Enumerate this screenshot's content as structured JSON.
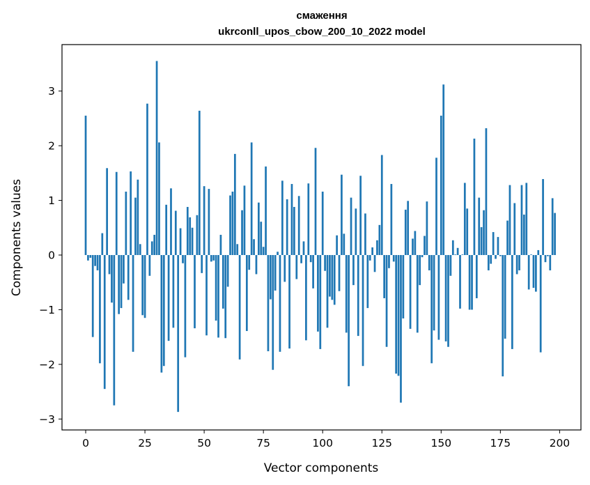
{
  "chart_data": {
    "type": "bar",
    "title_line1": "смаження",
    "title_line2": "ukrconll_upos_cbow_200_10_2022 model",
    "xlabel": "Vector components",
    "ylabel": "Components values",
    "xlim": [
      -10,
      209
    ],
    "ylim": [
      -3.2,
      3.85
    ],
    "xticks": [
      0,
      25,
      50,
      75,
      100,
      125,
      150,
      175,
      200
    ],
    "yticks": [
      -3,
      -2,
      -1,
      0,
      1,
      2,
      3
    ],
    "bar_color": "#1f77b4",
    "values": [
      2.55,
      -0.1,
      -0.05,
      -1.5,
      -0.2,
      -0.28,
      -1.98,
      0.4,
      -2.45,
      1.59,
      -0.35,
      -0.87,
      -2.75,
      1.52,
      -1.08,
      -0.97,
      -0.52,
      1.16,
      -0.82,
      1.53,
      -1.77,
      1.05,
      1.38,
      0.2,
      -1.1,
      -1.15,
      2.77,
      -0.38,
      0.25,
      0.37,
      3.55,
      2.06,
      -2.15,
      -2.03,
      0.92,
      -1.57,
      1.22,
      -1.33,
      0.81,
      -2.87,
      0.49,
      -0.15,
      -1.87,
      0.88,
      0.69,
      0.5,
      -1.34,
      0.73,
      2.64,
      -0.33,
      1.26,
      -1.47,
      1.21,
      -0.12,
      -0.1,
      -1.2,
      -1.51,
      0.37,
      -0.98,
      -1.52,
      -0.58,
      1.09,
      1.16,
      1.85,
      0.2,
      -1.91,
      0.82,
      1.27,
      -1.39,
      -0.27,
      2.06,
      0.29,
      -0.35,
      0.96,
      0.61,
      0.15,
      1.62,
      -1.76,
      -0.81,
      -2.1,
      -0.65,
      0.06,
      -1.77,
      1.36,
      -0.49,
      1.02,
      -1.71,
      1.3,
      0.88,
      -0.44,
      1.08,
      -0.15,
      0.25,
      -1.56,
      1.31,
      -0.13,
      -0.61,
      1.96,
      -1.4,
      -1.72,
      1.16,
      -0.29,
      -1.33,
      -0.76,
      -0.82,
      -0.91,
      0.36,
      -0.66,
      1.47,
      0.39,
      -1.42,
      -2.4,
      1.05,
      -0.55,
      0.85,
      -1.48,
      1.45,
      -2.03,
      0.76,
      -0.97,
      -0.1,
      0.14,
      -0.31,
      0.27,
      0.55,
      1.83,
      -0.79,
      -1.68,
      -0.24,
      1.3,
      -0.12,
      -2.17,
      -2.21,
      -2.7,
      -1.16,
      0.83,
      0.99,
      -1.35,
      0.3,
      0.44,
      -1.42,
      -0.55,
      -0.04,
      0.35,
      0.98,
      -0.28,
      -1.98,
      -1.38,
      1.78,
      -1.55,
      2.55,
      3.12,
      -1.58,
      -1.68,
      -0.38,
      0.27,
      0.01,
      0.13,
      -0.98,
      0.01,
      1.32,
      0.85,
      -1.0,
      -1.0,
      2.13,
      -0.79,
      1.05,
      0.51,
      0.82,
      2.32,
      -0.28,
      -0.16,
      0.42,
      -0.07,
      0.33,
      -0.02,
      -2.22,
      -1.53,
      0.63,
      1.28,
      -1.72,
      0.95,
      -0.35,
      -0.28,
      1.28,
      0.74,
      1.32,
      -0.63,
      0.01,
      -0.6,
      -0.67,
      0.09,
      -1.78,
      1.39,
      -0.13,
      -0.02,
      -0.28,
      1.04,
      0.77
    ]
  }
}
